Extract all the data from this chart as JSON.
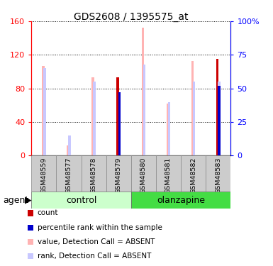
{
  "title": "GDS2608 / 1395575_at",
  "samples": [
    "GSM48559",
    "GSM48577",
    "GSM48578",
    "GSM48579",
    "GSM48580",
    "GSM48581",
    "GSM48582",
    "GSM48583"
  ],
  "value_absent": [
    107,
    12,
    93,
    null,
    152,
    62,
    113,
    null
  ],
  "rank_absent": [
    65,
    15,
    55,
    null,
    68,
    40,
    55,
    55
  ],
  "count": [
    null,
    null,
    null,
    93,
    null,
    null,
    null,
    115
  ],
  "percentile_rank": [
    null,
    null,
    null,
    47,
    null,
    null,
    null,
    52
  ],
  "ylim": [
    0,
    160
  ],
  "y2lim": [
    0,
    100
  ],
  "yticks": [
    0,
    40,
    80,
    120,
    160
  ],
  "ytick_labels": [
    "0",
    "40",
    "80",
    "120",
    "160"
  ],
  "y2ticks": [
    0,
    25,
    50,
    75,
    100
  ],
  "y2tick_labels": [
    "0",
    "25",
    "50",
    "75",
    "100%"
  ],
  "color_count": "#cc0000",
  "color_percentile": "#0000cc",
  "color_value_absent": "#ffb3b3",
  "color_rank_absent": "#c8c8ff",
  "legend_items": [
    {
      "label": "count",
      "color": "#cc0000"
    },
    {
      "label": "percentile rank within the sample",
      "color": "#0000cc"
    },
    {
      "label": "value, Detection Call = ABSENT",
      "color": "#ffb3b3"
    },
    {
      "label": "rank, Detection Call = ABSENT",
      "color": "#c8c8ff"
    }
  ],
  "ctrl_color_light": "#ccffcc",
  "olanz_color": "#44dd44",
  "sample_bg": "#cccccc"
}
